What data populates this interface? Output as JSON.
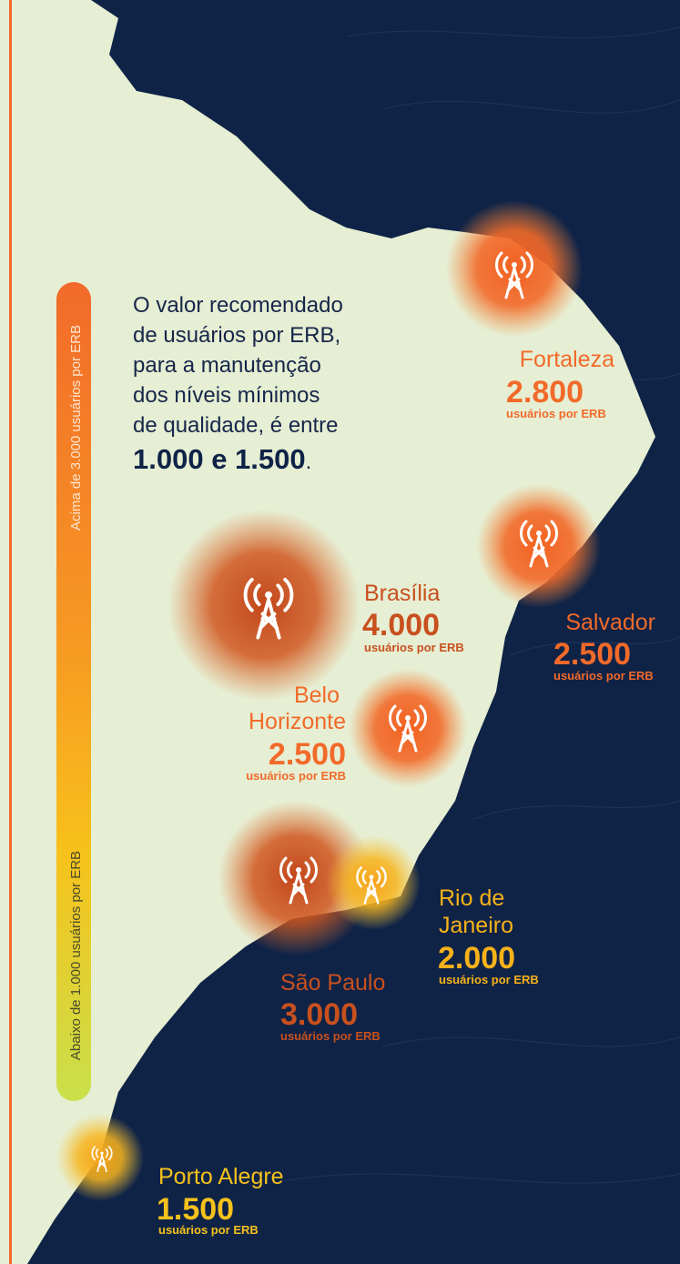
{
  "intro": {
    "lines": [
      "O valor recomendado",
      "de usuários por ERB,",
      "para a manutenção",
      "dos níveis mínimos",
      "de qualidade, é entre"
    ],
    "highlight": "1.000 e 1.500",
    "end": "."
  },
  "scale": {
    "top_label": "Acima de 3.000 usuários por ERB",
    "bottom_label": "Abaixo de 1.000 usuários por ERB"
  },
  "cities": [
    {
      "name": [
        "Fortaleza"
      ],
      "value": "2.800",
      "unit": "usuários por ERB"
    },
    {
      "name": [
        "Brasília"
      ],
      "value": "4.000",
      "unit": "usuários por ERB"
    },
    {
      "name": [
        "Salvador"
      ],
      "value": "2.500",
      "unit": "usuários por ERB"
    },
    {
      "name": [
        "Belo",
        "Horizonte"
      ],
      "value": "2.500",
      "unit": "usuários por ERB"
    },
    {
      "name": [
        "Rio de",
        "Janeiro"
      ],
      "value": "2.000",
      "unit": "usuários por ERB"
    },
    {
      "name": [
        "São Paulo"
      ],
      "value": "3.000",
      "unit": "usuários por ERB"
    },
    {
      "name": [
        "Porto Alegre"
      ],
      "value": "1.500",
      "unit": "usuários por ERB"
    }
  ]
}
